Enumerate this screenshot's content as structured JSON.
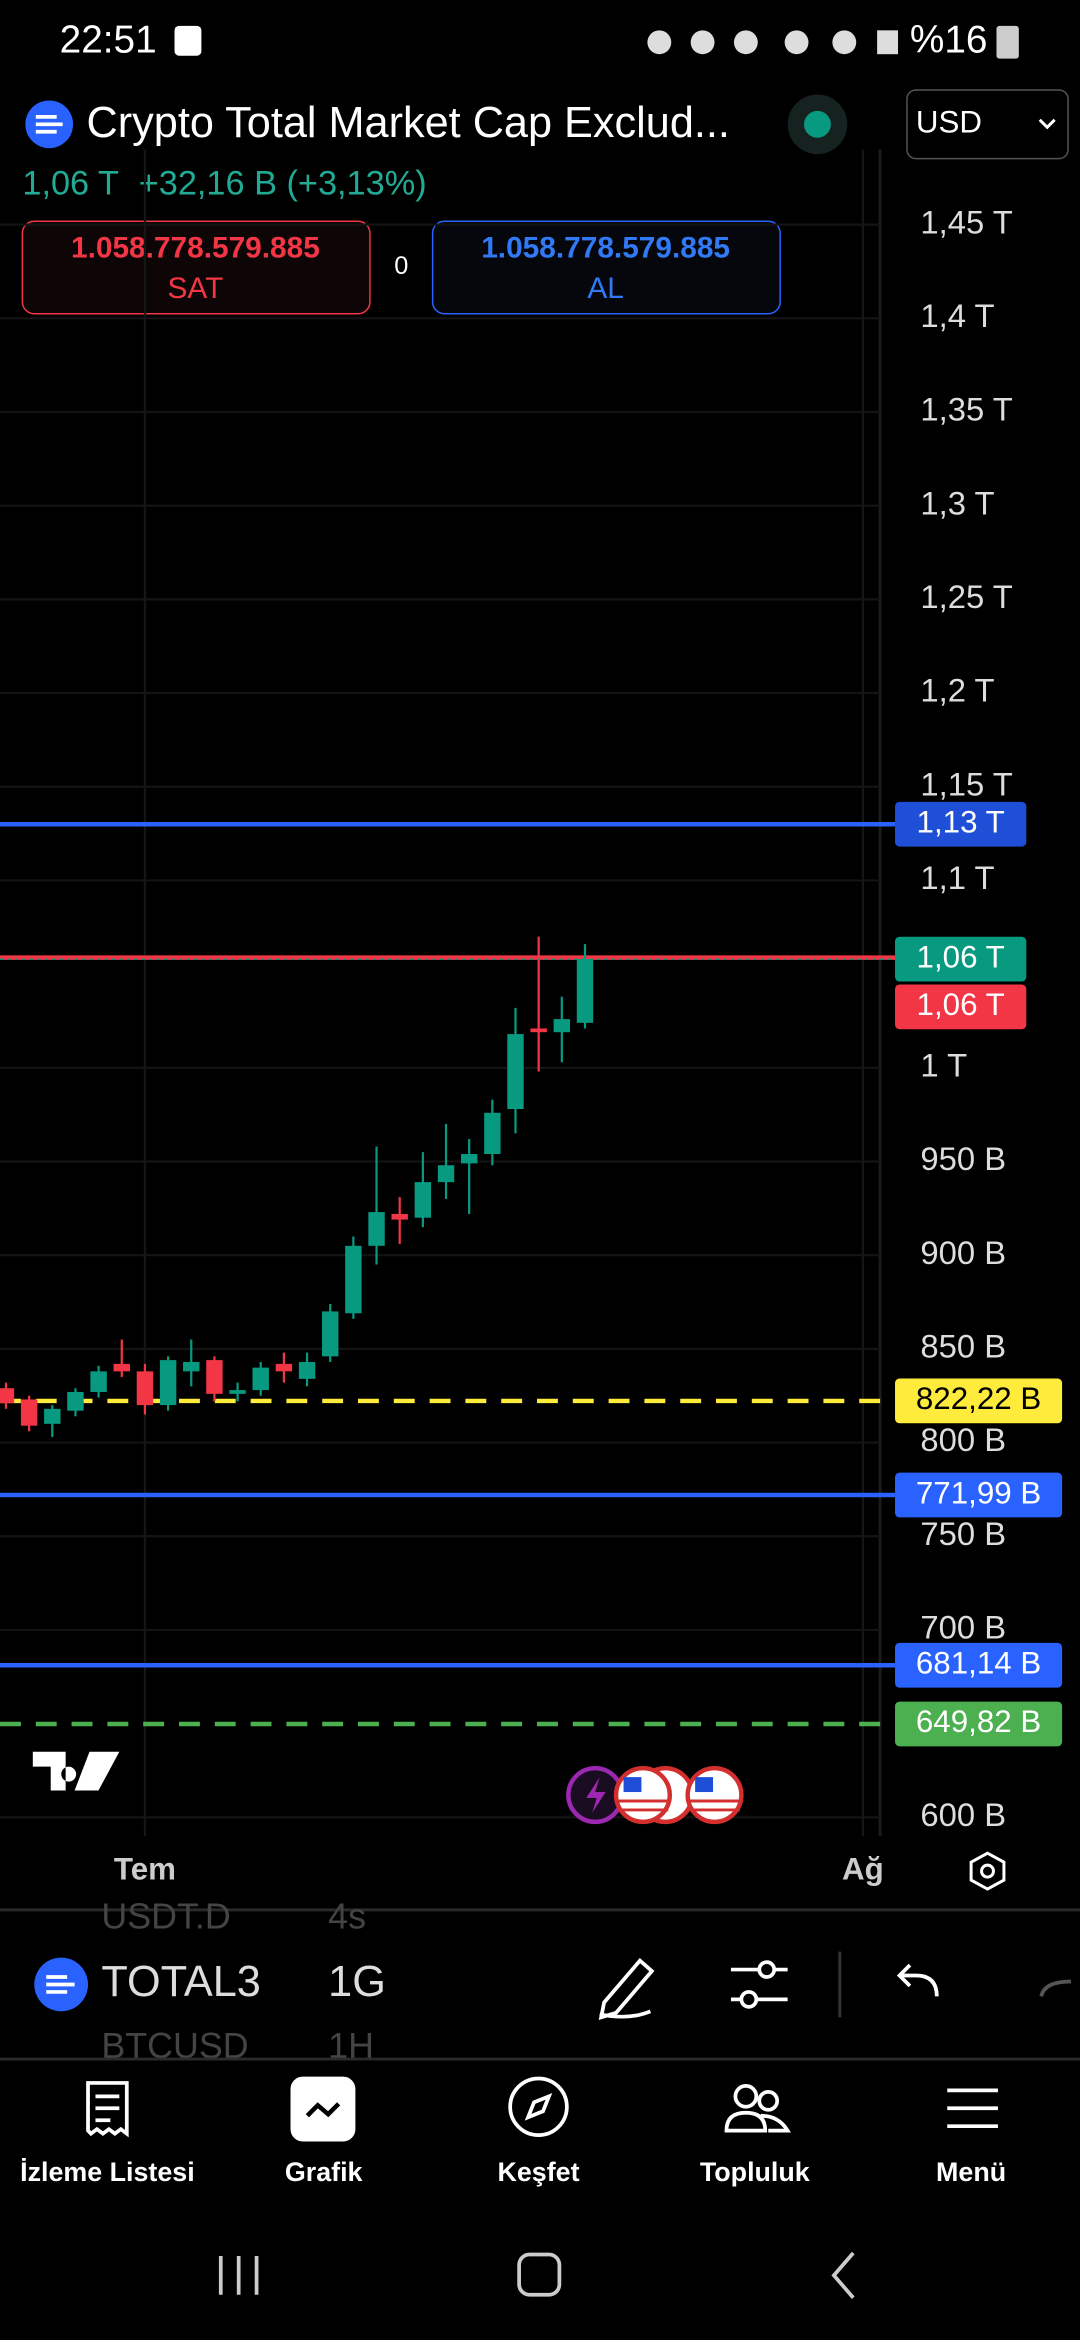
{
  "status_bar": {
    "time": "22:51",
    "battery": "%16"
  },
  "header": {
    "title": "Crypto Total Market Cap Exclud...",
    "last": "1,06 T",
    "change": "+32,16 B (+3,13%)",
    "sell_price": "1.058.778.579.885",
    "sell_label": "SAT",
    "spread": "0",
    "buy_price": "1.058.778.579.885",
    "buy_label": "AL",
    "currency": "USD"
  },
  "chart_data": {
    "type": "candlestick",
    "categories": [
      null,
      null,
      null,
      null,
      null,
      null,
      "Tem",
      null,
      null,
      null,
      null,
      null,
      null,
      null,
      null,
      null,
      null,
      null,
      null,
      null,
      null,
      null,
      null,
      null,
      null,
      null,
      null,
      null,
      null,
      null,
      null,
      null,
      null,
      null,
      null,
      null,
      null,
      "Ağ"
    ],
    "open": [
      829,
      823,
      810,
      817,
      827,
      842,
      838,
      820,
      838,
      844,
      826,
      828,
      842,
      834,
      846,
      869,
      905,
      922,
      920,
      939,
      949,
      954,
      978,
      1021,
      1019,
      1024,
      null,
      null,
      null,
      null,
      null,
      null,
      null,
      null,
      null,
      null,
      null,
      null
    ],
    "high": [
      832,
      825,
      820,
      829,
      841,
      855,
      842,
      846,
      855,
      846,
      832,
      843,
      848,
      848,
      874,
      910,
      958,
      931,
      955,
      970,
      962,
      983,
      1032,
      1070,
      1038,
      1066,
      null,
      null,
      null,
      null,
      null,
      null,
      null,
      null,
      null,
      null,
      null,
      null
    ],
    "low": [
      818,
      806,
      803,
      814,
      824,
      835,
      815,
      817,
      830,
      822,
      822,
      825,
      832,
      830,
      843,
      866,
      895,
      906,
      915,
      930,
      922,
      948,
      965,
      998,
      1003,
      1021,
      null,
      null,
      null,
      null,
      null,
      null,
      null,
      null,
      null,
      null,
      null,
      null
    ],
    "close": [
      821,
      809,
      818,
      827,
      838,
      838,
      820,
      844,
      843,
      826,
      828,
      840,
      838,
      843,
      870,
      905,
      923,
      919,
      939,
      948,
      954,
      976,
      1018,
      1019,
      1026,
      1058,
      null,
      null,
      null,
      null,
      null,
      null,
      null,
      null,
      null,
      null,
      null,
      null
    ],
    "up_color": "#089981",
    "down_color": "#f23645",
    "ylim": [
      590,
      1490
    ],
    "yticks": [
      {
        "value": 600,
        "label": "600 B"
      },
      {
        "value": 700,
        "label": "700 B"
      },
      {
        "value": 750,
        "label": "750 B"
      },
      {
        "value": 800,
        "label": "800 B"
      },
      {
        "value": 850,
        "label": "850 B"
      },
      {
        "value": 900,
        "label": "900 B"
      },
      {
        "value": 950,
        "label": "950 B"
      },
      {
        "value": 1000,
        "label": "1 T"
      },
      {
        "value": 1100,
        "label": "1,1 T"
      },
      {
        "value": 1150,
        "label": "1,15 T"
      },
      {
        "value": 1200,
        "label": "1,2 T"
      },
      {
        "value": 1250,
        "label": "1,25 T"
      },
      {
        "value": 1300,
        "label": "1,3 T"
      },
      {
        "value": 1350,
        "label": "1,35 T"
      },
      {
        "value": 1400,
        "label": "1,4 T"
      },
      {
        "value": 1450,
        "label": "1,45 T"
      }
    ],
    "levels": [
      {
        "value": 1130,
        "label": "1,13 T",
        "color": "#2962ff",
        "tag_color": "#1e4fd6",
        "dashed": false
      },
      {
        "value": 1058.78,
        "label": "1,06 T",
        "color": "#f23645",
        "tag_color": "#f23645",
        "dashed": false
      },
      {
        "value": 822.22,
        "label": "822,22 B",
        "color": "#ffeb3b",
        "tag_color": "#ffeb3b",
        "dashed": true
      },
      {
        "value": 771.99,
        "label": "771,99 B",
        "color": "#2962ff",
        "tag_color": "#2962ff",
        "dashed": false
      },
      {
        "value": 681.14,
        "label": "681,14 B",
        "color": "#2962ff",
        "tag_color": "#2962ff",
        "dashed": false
      },
      {
        "value": 649.82,
        "label": "649,82 B",
        "color": "#4caf50",
        "tag_color": "#4caf50",
        "dashed": true
      }
    ],
    "last_price": {
      "value": 1058,
      "label": "1,06 T",
      "color": "#089981"
    }
  },
  "toolbar": {
    "symbol_above": "USDT.D",
    "interval_above": "4s",
    "symbol": "TOTAL3",
    "interval": "1G",
    "symbol_below": "BTCUSD",
    "interval_below": "1H"
  },
  "nav": [
    "İzleme Listesi",
    "Grafik",
    "Keşfet",
    "Topluluk",
    "Menü"
  ]
}
